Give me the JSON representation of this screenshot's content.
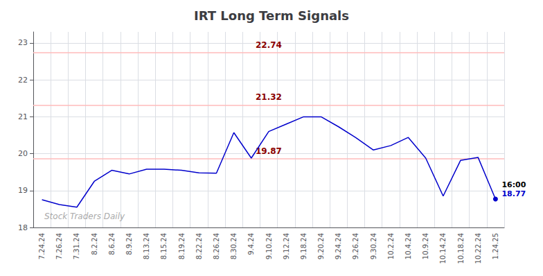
{
  "chart_data": {
    "type": "line",
    "title": "IRT Long Term Signals",
    "categories": [
      "7.24.24",
      "7.26.24",
      "7.31.24",
      "8.2.24",
      "8.6.24",
      "8.9.24",
      "8.13.24",
      "8.15.24",
      "8.19.24",
      "8.22.24",
      "8.26.24",
      "8.30.24",
      "9.4.24",
      "9.10.24",
      "9.12.24",
      "9.18.24",
      "9.20.24",
      "9.24.24",
      "9.26.24",
      "9.30.24",
      "10.2.24",
      "10.4.24",
      "10.9.24",
      "10.14.24",
      "10.18.24",
      "10.22.24",
      "1.24.25"
    ],
    "values": [
      18.75,
      18.62,
      18.55,
      19.25,
      19.55,
      19.45,
      19.58,
      19.58,
      19.55,
      19.48,
      19.47,
      20.57,
      19.88,
      20.6,
      20.8,
      21.0,
      21.0,
      20.73,
      20.43,
      20.1,
      20.22,
      20.44,
      19.88,
      18.85,
      19.82,
      19.9,
      18.77
    ],
    "color": "#0000cc",
    "ylim": [
      18,
      23.3
    ],
    "yticks": [
      18,
      19,
      20,
      21,
      22,
      23
    ],
    "grid": true,
    "reference_lines": [
      {
        "y": 22.74,
        "label": "22.74",
        "color": "#ffbbbb",
        "label_color": "#8b0000"
      },
      {
        "y": 21.32,
        "label": "21.32",
        "color": "#ffbbbb",
        "label_color": "#8b0000"
      },
      {
        "y": 19.87,
        "label": "19.87",
        "color": "#ffbbbb",
        "label_color": "#8b0000"
      }
    ],
    "annotations": [
      {
        "text": "18.77",
        "x": "1.24.25",
        "y": 18.77,
        "color": "#0000cc"
      },
      {
        "text": "16:00",
        "x": "1.24.25",
        "y": 18.77,
        "color": "#000000"
      },
      {
        "text": "Stock Traders Daily",
        "color": "#aaaaaa"
      }
    ]
  }
}
